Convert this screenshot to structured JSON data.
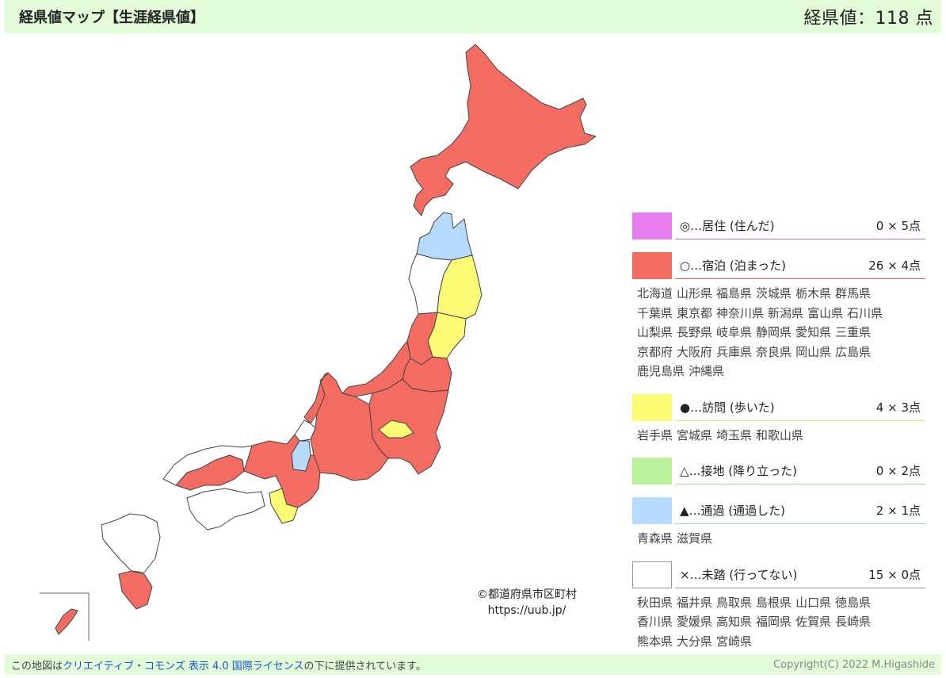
{
  "header": {
    "title": "経県値マップ【生涯経県値】",
    "score": "経県値：118 点"
  },
  "map": {
    "credit_line1": "©都道府県市区町村",
    "credit_line2": "https://uub.jp/"
  },
  "legend": [
    {
      "key": "lived",
      "label": "◎…居住 (住んだ)",
      "count": "0 × 5点",
      "color": "#e87df0",
      "line": "#d46ee0",
      "prefectures": []
    },
    {
      "key": "stayed",
      "label": "○…宿泊 (泊まった)",
      "count": "26 × 4点",
      "color": "#f46b62",
      "line": "#e05a52",
      "prefectures": [
        "北海道",
        "山形県",
        "福島県",
        "茨城県",
        "栃木県",
        "群馬県",
        "千葉県",
        "東京都",
        "神奈川県",
        "新潟県",
        "富山県",
        "石川県",
        "山梨県",
        "長野県",
        "岐阜県",
        "静岡県",
        "愛知県",
        "三重県",
        "京都府",
        "大阪府",
        "兵庫県",
        "奈良県",
        "岡山県",
        "広島県",
        "鹿児島県",
        "沖縄県"
      ]
    },
    {
      "key": "visited",
      "label": "●…訪問 (歩いた)",
      "count": "4 × 3点",
      "color": "#fafa75",
      "line": "#e8e86a",
      "prefectures": [
        "岩手県",
        "宮城県",
        "埼玉県",
        "和歌山県"
      ]
    },
    {
      "key": "landed",
      "label": "△…接地 (降り立った)",
      "count": "0 × 2点",
      "color": "#b9f29a",
      "line": "#a6dc88",
      "prefectures": []
    },
    {
      "key": "passed",
      "label": "▲…通過 (通過した)",
      "count": "2 × 1点",
      "color": "#b5dafb",
      "line": "#9ec8ee",
      "prefectures": [
        "青森県",
        "滋賀県"
      ]
    },
    {
      "key": "unvisited",
      "label": "×…未踏 (行ってない)",
      "count": "15 × 0点",
      "color": "#ffffff",
      "line": "#999999",
      "prefectures": [
        "秋田県",
        "福井県",
        "鳥取県",
        "島根県",
        "山口県",
        "徳島県",
        "香川県",
        "愛媛県",
        "高知県",
        "福岡県",
        "佐賀県",
        "長崎県",
        "熊本県",
        "大分県",
        "宮崎県"
      ]
    }
  ],
  "footer": {
    "license_prefix": "この地図は",
    "license_link": "クリエイティブ・コモンズ 表示 4.0 国際ライセンス",
    "license_suffix": "の下に提供されています。",
    "copyright": "Copyright(C) 2022 M.Higashide"
  }
}
